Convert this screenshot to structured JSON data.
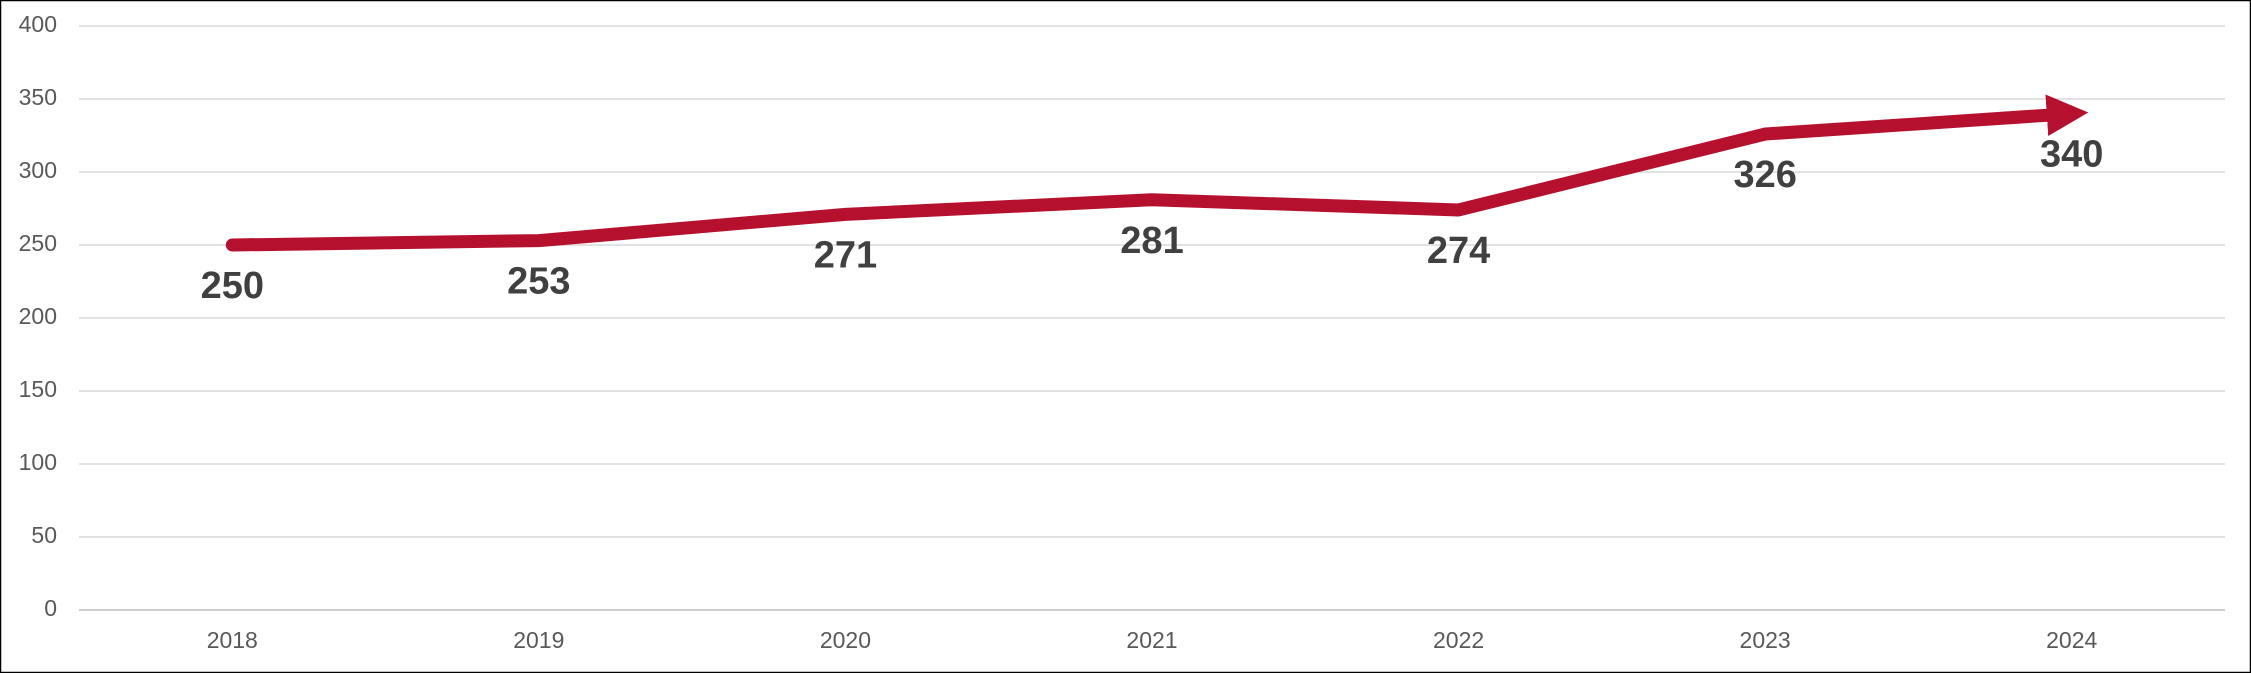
{
  "chart_data": {
    "type": "line",
    "categories": [
      "2018",
      "2019",
      "2020",
      "2021",
      "2022",
      "2023",
      "2024"
    ],
    "values": [
      250,
      253,
      271,
      281,
      274,
      326,
      340
    ],
    "color": "#b5102e",
    "ylim": [
      0,
      400
    ],
    "yticks": [
      0,
      50,
      100,
      150,
      200,
      250,
      300,
      350,
      400
    ],
    "grid": true
  }
}
